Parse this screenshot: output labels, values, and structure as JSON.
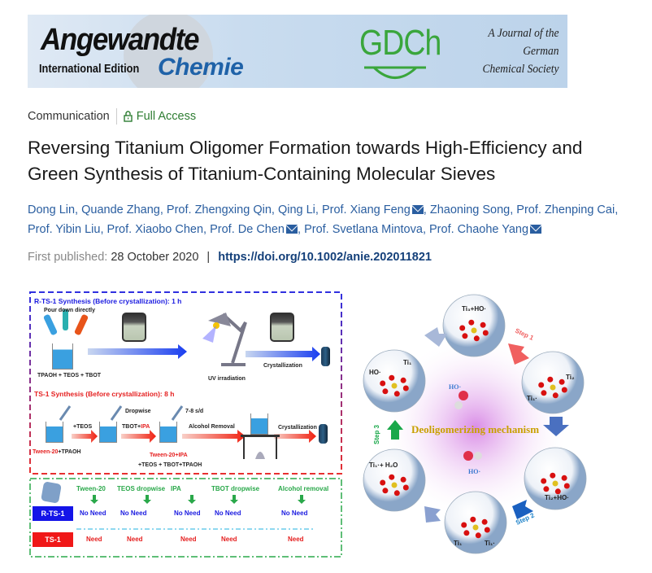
{
  "banner": {
    "journal_line1": "Angewandte",
    "journal_edition": "International Edition",
    "journal_line2": "Chemie",
    "society_logo": "GDCh",
    "society_line1": "A Journal of the",
    "society_line2": "German",
    "society_line3": "Chemical Society"
  },
  "meta": {
    "article_type": "Communication",
    "access_label": "Full Access",
    "access_icon": "lock-icon",
    "access_color": "#2e7d32"
  },
  "title": "Reversing Titanium Oligomer Formation towards High-Efficiency and Green Synthesis of Titanium-Containing Molecular Sieves",
  "authors": [
    {
      "name": "Dong Lin",
      "email": false
    },
    {
      "name": "Quande Zhang",
      "email": false
    },
    {
      "name": "Prof. Zhengxing Qin",
      "email": false
    },
    {
      "name": "Qing Li",
      "email": false
    },
    {
      "name": "Prof. Xiang Feng",
      "email": true
    },
    {
      "name": "Zhaoning Song",
      "email": false
    },
    {
      "name": "Prof. Zhenping Cai",
      "email": false
    },
    {
      "name": "Prof. Yibin Liu",
      "email": false
    },
    {
      "name": "Prof. Xiaobo Chen",
      "email": false
    },
    {
      "name": "Prof. De Chen",
      "email": true
    },
    {
      "name": "Prof. Svetlana Mintova",
      "email": false
    },
    {
      "name": "Prof. Chaohe Yang",
      "email": true
    }
  ],
  "published": {
    "label": "First published:",
    "date": "28 October 2020",
    "separator": "|",
    "doi": "https://doi.org/10.1002/anie.202011821"
  },
  "figure": {
    "rts1_title": "R-TS-1 Synthesis (Before crystallization): 1 h",
    "pour": "Pour down directly",
    "rts1_mix": "TPAOH + TEOS + TBOT",
    "uv": "UV irradiation",
    "cryst1": "Crystallization",
    "ts1_title": "TS-1 Synthesis (Before crystallization): 8 h",
    "teos": "+TEOS",
    "dropwise": "Dropwise",
    "tbot": "TBOT+",
    "ipa": "IPA",
    "rate": "7-8 s/d",
    "alcohol": "Alcohol Removal",
    "cryst2": "Crystallization",
    "tween_red": "Tween-20",
    "tween_rest": "+TPAOH",
    "mix2_red": "Tween-20+IPA",
    "mix2_rest": "+TEOS + TBOT+TPAOH",
    "table": {
      "headers": [
        "Tween-20",
        "TEOS dropwise",
        "IPA",
        "TBOT dropwise",
        "Alcohol removal"
      ],
      "rows": [
        {
          "label": "R-TS-1",
          "values": [
            "No Need",
            "No Need",
            "No Need",
            "No Need",
            "No Need"
          ]
        },
        {
          "label": "TS-1",
          "values": [
            "Need",
            "Need",
            "Need",
            "Need",
            "Need"
          ]
        }
      ]
    },
    "mechanism": {
      "center": "Deoligomerizing mechanism",
      "ho_top": "HO·",
      "ho_bottom": "HO·",
      "step1": "Step 1",
      "step2": "Step 2",
      "step3": "Step 3",
      "bubbles": [
        "Ti₃+HO·",
        "Ti₂",
        "Ti₁·",
        "Ti₂+HO·",
        "Ti₁",
        "Ti₁·",
        "Ti₁·+ H₂O",
        "HO·",
        "Ti₁"
      ]
    }
  }
}
